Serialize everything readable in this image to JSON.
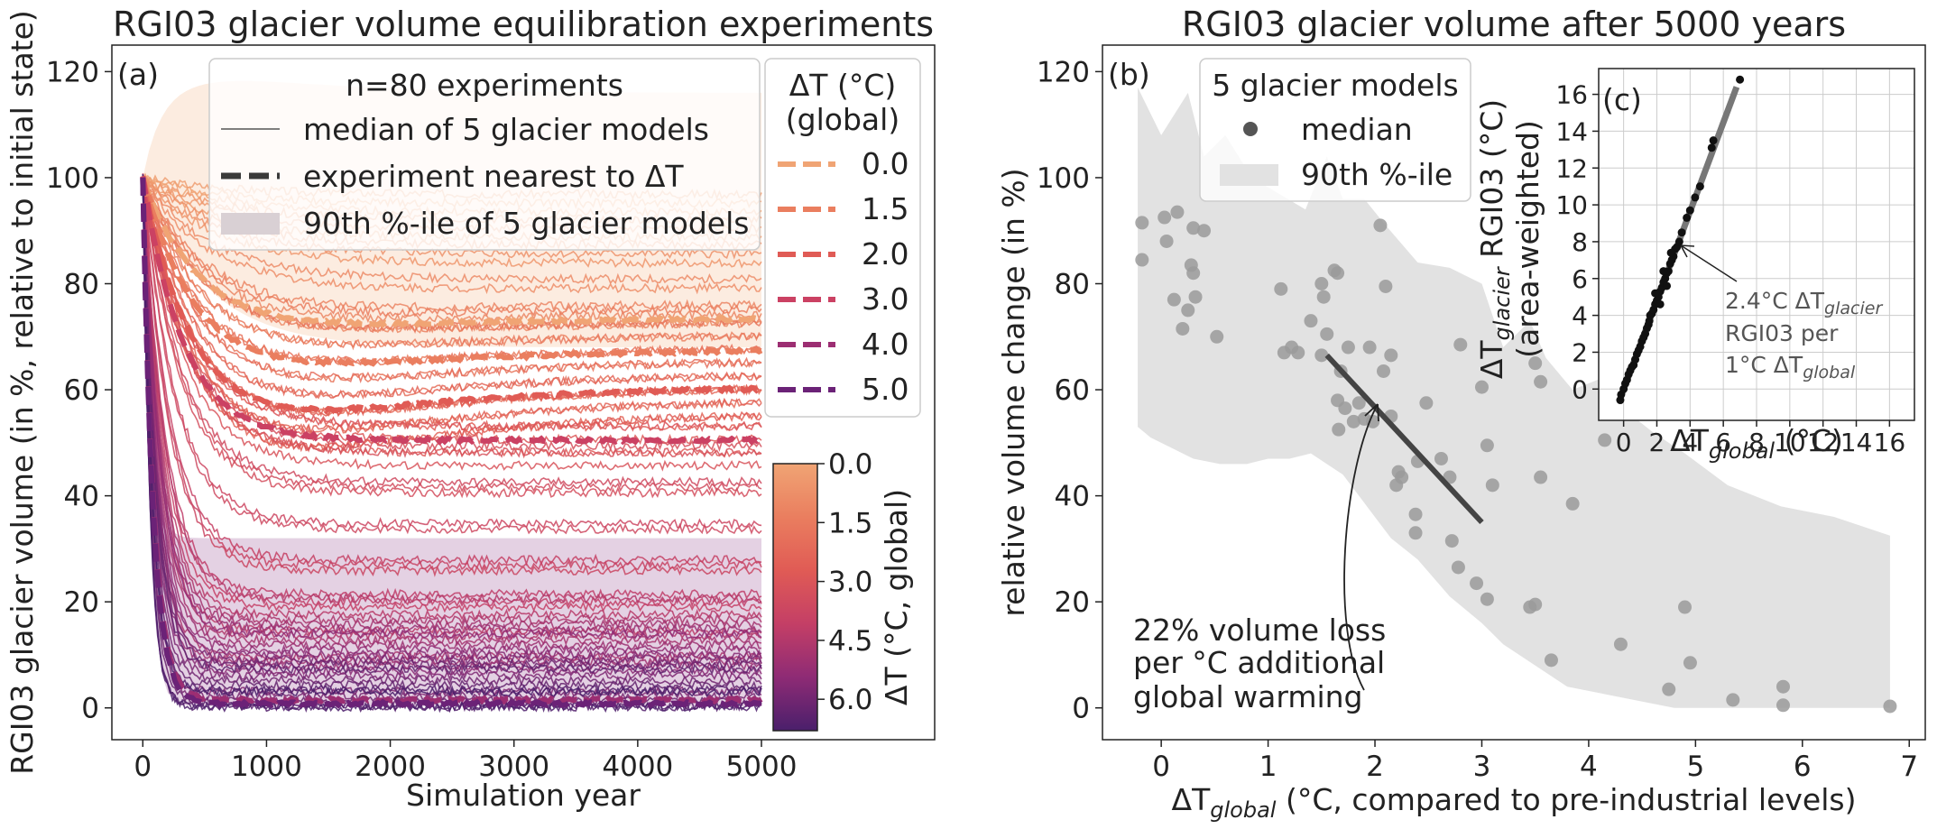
{
  "chart_data": [
    {
      "panel": "(a)",
      "type": "line",
      "title": "RGI03 glacier volume equilibration experiments",
      "xlabel": "Simulation year",
      "ylabel": "RGI03 glacier volume (in %, relative to initial state)",
      "xlim": [
        -250,
        6400
      ],
      "ylim": [
        -6,
        125
      ],
      "xticks": [
        0,
        1000,
        2000,
        3000,
        4000,
        5000
      ],
      "yticks": [
        0,
        20,
        40,
        60,
        80,
        100,
        120
      ],
      "n_experiments": 80,
      "legend_title": "n=80 experiments",
      "legend": {
        "median_label": "median of 5 glacier models",
        "nearest_label": "experiment nearest to ΔT",
        "band_label": "90th %-ile of 5 glacier models"
      },
      "dt_legend_title_1": "ΔT (°C)",
      "dt_legend_title_2": "(global)",
      "highlight_series": [
        {
          "dt": "0.0",
          "final": 73.5,
          "color": "#F0A474"
        },
        {
          "dt": "1.5",
          "final": 67.5,
          "color": "#EA7E5F"
        },
        {
          "dt": "2.0",
          "final": 60.5,
          "color": "#E05B55"
        },
        {
          "dt": "3.0",
          "final": 50.5,
          "color": "#CB4163"
        },
        {
          "dt": "4.0",
          "final": 1.5,
          "color": "#9C2E72"
        },
        {
          "dt": "5.0",
          "final": 0.8,
          "color": "#6B2277"
        }
      ],
      "bands": [
        {
          "dt": 0.0,
          "lower": 68,
          "upper": 116,
          "color": "#F5C8A6"
        },
        {
          "dt": 5.0,
          "lower": 0.3,
          "upper": 32,
          "color": "#B27AAE"
        }
      ],
      "colorbar": {
        "label": "ΔT (°C, global)",
        "ticks": [
          "0.0",
          "1.5",
          "3.0",
          "4.5",
          "6.0"
        ],
        "range": [
          0,
          6.8
        ]
      }
    },
    {
      "panel": "(b)",
      "type": "scatter",
      "title": "RGI03 glacier volume after 5000 years",
      "xlabel_main": "ΔT",
      "xlabel_sub": "global",
      "xlabel_rest": " (°C, compared to pre-industrial levels)",
      "ylabel": "relative volume change (in %)",
      "xlim": [
        -0.55,
        7.15
      ],
      "ylim": [
        -6,
        125
      ],
      "xticks": [
        0,
        1,
        2,
        3,
        4,
        5,
        6,
        7
      ],
      "yticks": [
        0,
        20,
        40,
        60,
        80,
        100,
        120
      ],
      "legend_title": "5 glacier models",
      "legend": {
        "median_label": "median",
        "band_label": "90th %-ile"
      },
      "trend": {
        "x": [
          1.55,
          3.0
        ],
        "y": [
          66.5,
          35
        ]
      },
      "annotation": [
        "22% volume loss",
        "per °C additional",
        "global warming"
      ],
      "points": [
        [
          -0.18,
          91.5
        ],
        [
          -0.18,
          84.5
        ],
        [
          0.03,
          92.5
        ],
        [
          0.05,
          88
        ],
        [
          0.12,
          77
        ],
        [
          0.15,
          93.5
        ],
        [
          0.2,
          71.5
        ],
        [
          0.25,
          75
        ],
        [
          0.28,
          83.5
        ],
        [
          0.3,
          82
        ],
        [
          0.3,
          90.5
        ],
        [
          0.32,
          77.5
        ],
        [
          0.4,
          90
        ],
        [
          0.52,
          70
        ],
        [
          1.12,
          79
        ],
        [
          1.15,
          67
        ],
        [
          1.22,
          68
        ],
        [
          1.28,
          67
        ],
        [
          1.4,
          73
        ],
        [
          1.5,
          80
        ],
        [
          1.52,
          77.5
        ],
        [
          1.55,
          70.5
        ],
        [
          1.5,
          66.5
        ],
        [
          1.62,
          82.5
        ],
        [
          1.65,
          82
        ],
        [
          1.65,
          58
        ],
        [
          1.66,
          52.5
        ],
        [
          1.68,
          63.5
        ],
        [
          1.72,
          56.5
        ],
        [
          1.75,
          68
        ],
        [
          1.8,
          54
        ],
        [
          1.85,
          57.5
        ],
        [
          1.9,
          54.5
        ],
        [
          1.95,
          68
        ],
        [
          1.98,
          54
        ],
        [
          2.05,
          91
        ],
        [
          2.08,
          63.5
        ],
        [
          2.1,
          79.5
        ],
        [
          2.15,
          66.5
        ],
        [
          2.15,
          55
        ],
        [
          2.2,
          42
        ],
        [
          2.22,
          44.5
        ],
        [
          2.25,
          43.5
        ],
        [
          2.38,
          36.5
        ],
        [
          2.38,
          33
        ],
        [
          2.4,
          46.5
        ],
        [
          2.48,
          57.5
        ],
        [
          2.62,
          47
        ],
        [
          2.7,
          43.5
        ],
        [
          2.72,
          31.5
        ],
        [
          2.78,
          26.5
        ],
        [
          2.8,
          68.5
        ],
        [
          2.95,
          23.5
        ],
        [
          3.0,
          60.5
        ],
        [
          3.05,
          20.5
        ],
        [
          3.05,
          49.5
        ],
        [
          3.1,
          42
        ],
        [
          3.45,
          19
        ],
        [
          3.5,
          65
        ],
        [
          3.5,
          19.5
        ],
        [
          3.55,
          61.5
        ],
        [
          3.55,
          43.5
        ],
        [
          3.65,
          9
        ],
        [
          3.85,
          38.5
        ],
        [
          4.15,
          50.5
        ],
        [
          4.3,
          12
        ],
        [
          4.75,
          3.5
        ],
        [
          4.9,
          19
        ],
        [
          4.95,
          8.5
        ],
        [
          5.35,
          1.5
        ],
        [
          5.82,
          4
        ],
        [
          5.82,
          0.5
        ],
        [
          6.82,
          0.3
        ]
      ],
      "band_upper": [
        [
          -0.22,
          117
        ],
        [
          0.0,
          108
        ],
        [
          0.25,
          116
        ],
        [
          0.4,
          104
        ],
        [
          0.6,
          108
        ],
        [
          0.85,
          100
        ],
        [
          1.1,
          97
        ],
        [
          1.35,
          94
        ],
        [
          1.55,
          104
        ],
        [
          1.7,
          96
        ],
        [
          1.9,
          96
        ],
        [
          2.1,
          91
        ],
        [
          2.4,
          84
        ],
        [
          2.7,
          83
        ],
        [
          3.0,
          80
        ],
        [
          3.2,
          68
        ],
        [
          3.45,
          73
        ],
        [
          3.6,
          66
        ],
        [
          3.85,
          60
        ],
        [
          4.1,
          62
        ],
        [
          4.35,
          56
        ],
        [
          4.6,
          52
        ],
        [
          4.9,
          48
        ],
        [
          5.3,
          42
        ],
        [
          5.8,
          38
        ],
        [
          6.3,
          36
        ],
        [
          6.82,
          32.5
        ]
      ],
      "band_lower": [
        [
          6.82,
          0
        ],
        [
          5.8,
          0
        ],
        [
          4.8,
          0
        ],
        [
          4.3,
          2
        ],
        [
          3.8,
          4
        ],
        [
          3.5,
          8
        ],
        [
          3.2,
          12
        ],
        [
          3.0,
          16
        ],
        [
          2.7,
          21
        ],
        [
          2.4,
          28
        ],
        [
          2.15,
          32
        ],
        [
          2.0,
          36
        ],
        [
          1.85,
          40
        ],
        [
          1.7,
          44
        ],
        [
          1.55,
          46
        ],
        [
          1.4,
          48
        ],
        [
          1.2,
          47
        ],
        [
          1.0,
          47
        ],
        [
          0.8,
          46
        ],
        [
          0.55,
          46
        ],
        [
          0.3,
          47
        ],
        [
          0.1,
          49
        ],
        [
          -0.1,
          51
        ],
        [
          -0.22,
          53
        ]
      ]
    },
    {
      "panel": "(c)",
      "type": "scatter",
      "xlabel_main": "ΔT",
      "xlabel_sub": "global",
      "xlabel_rest": " (°C)",
      "ylabel_line1_main": "ΔT",
      "ylabel_line1_sub": "glacier",
      "ylabel_line1_rest": " RGI03 (°C)",
      "ylabel_line2": "(area-weighted)",
      "xlim": [
        -1.5,
        17.5
      ],
      "ylim": [
        -1.7,
        17.4
      ],
      "xticks": [
        0,
        2,
        4,
        6,
        8,
        10,
        12,
        14,
        16
      ],
      "yticks": [
        0,
        2,
        4,
        6,
        8,
        10,
        12,
        14,
        16
      ],
      "slope": 2.4,
      "fit": {
        "x": [
          -0.2,
          6.8
        ],
        "y": [
          -0.5,
          16.4
        ]
      },
      "annotation": {
        "line1_a": "2.4°C ΔT",
        "line1_sub": "glacier",
        "line2": "RGI03 per",
        "line3_a": "1°C ΔT",
        "line3_sub": "global"
      },
      "points": [
        [
          -0.2,
          -0.6
        ],
        [
          -0.15,
          -0.3
        ],
        [
          0.0,
          0.0
        ],
        [
          0.1,
          0.3
        ],
        [
          0.2,
          0.5
        ],
        [
          0.3,
          0.8
        ],
        [
          0.4,
          1.0
        ],
        [
          0.5,
          1.2
        ],
        [
          0.6,
          1.3
        ],
        [
          0.7,
          1.6
        ],
        [
          0.8,
          1.9
        ],
        [
          0.9,
          2.1
        ],
        [
          1.0,
          2.3
        ],
        [
          1.1,
          2.6
        ],
        [
          1.2,
          2.8
        ],
        [
          1.3,
          3.0
        ],
        [
          1.4,
          3.3
        ],
        [
          1.5,
          3.5
        ],
        [
          1.55,
          3.7
        ],
        [
          1.6,
          4.0
        ],
        [
          1.7,
          4.1
        ],
        [
          1.8,
          4.3
        ],
        [
          1.9,
          4.6
        ],
        [
          2.0,
          4.8
        ],
        [
          2.1,
          5.0
        ],
        [
          2.2,
          5.3
        ],
        [
          2.3,
          5.5
        ],
        [
          2.4,
          5.8
        ],
        [
          2.5,
          6.0
        ],
        [
          2.6,
          6.3
        ],
        [
          2.7,
          6.4
        ],
        [
          2.8,
          6.8
        ],
        [
          2.9,
          7.0
        ],
        [
          3.0,
          7.2
        ],
        [
          3.1,
          7.6
        ],
        [
          3.2,
          7.7
        ],
        [
          2.85,
          7.4
        ],
        [
          2.6,
          5.6
        ],
        [
          2.4,
          6.4
        ],
        [
          2.2,
          4.6
        ],
        [
          1.9,
          5.2
        ],
        [
          3.35,
          8.0
        ],
        [
          3.5,
          8.5
        ],
        [
          3.8,
          9.3
        ],
        [
          4.0,
          9.7
        ],
        [
          4.3,
          10.4
        ],
        [
          4.6,
          11.0
        ],
        [
          5.3,
          13.1
        ],
        [
          5.4,
          13.5
        ],
        [
          7.0,
          16.8
        ]
      ]
    }
  ]
}
